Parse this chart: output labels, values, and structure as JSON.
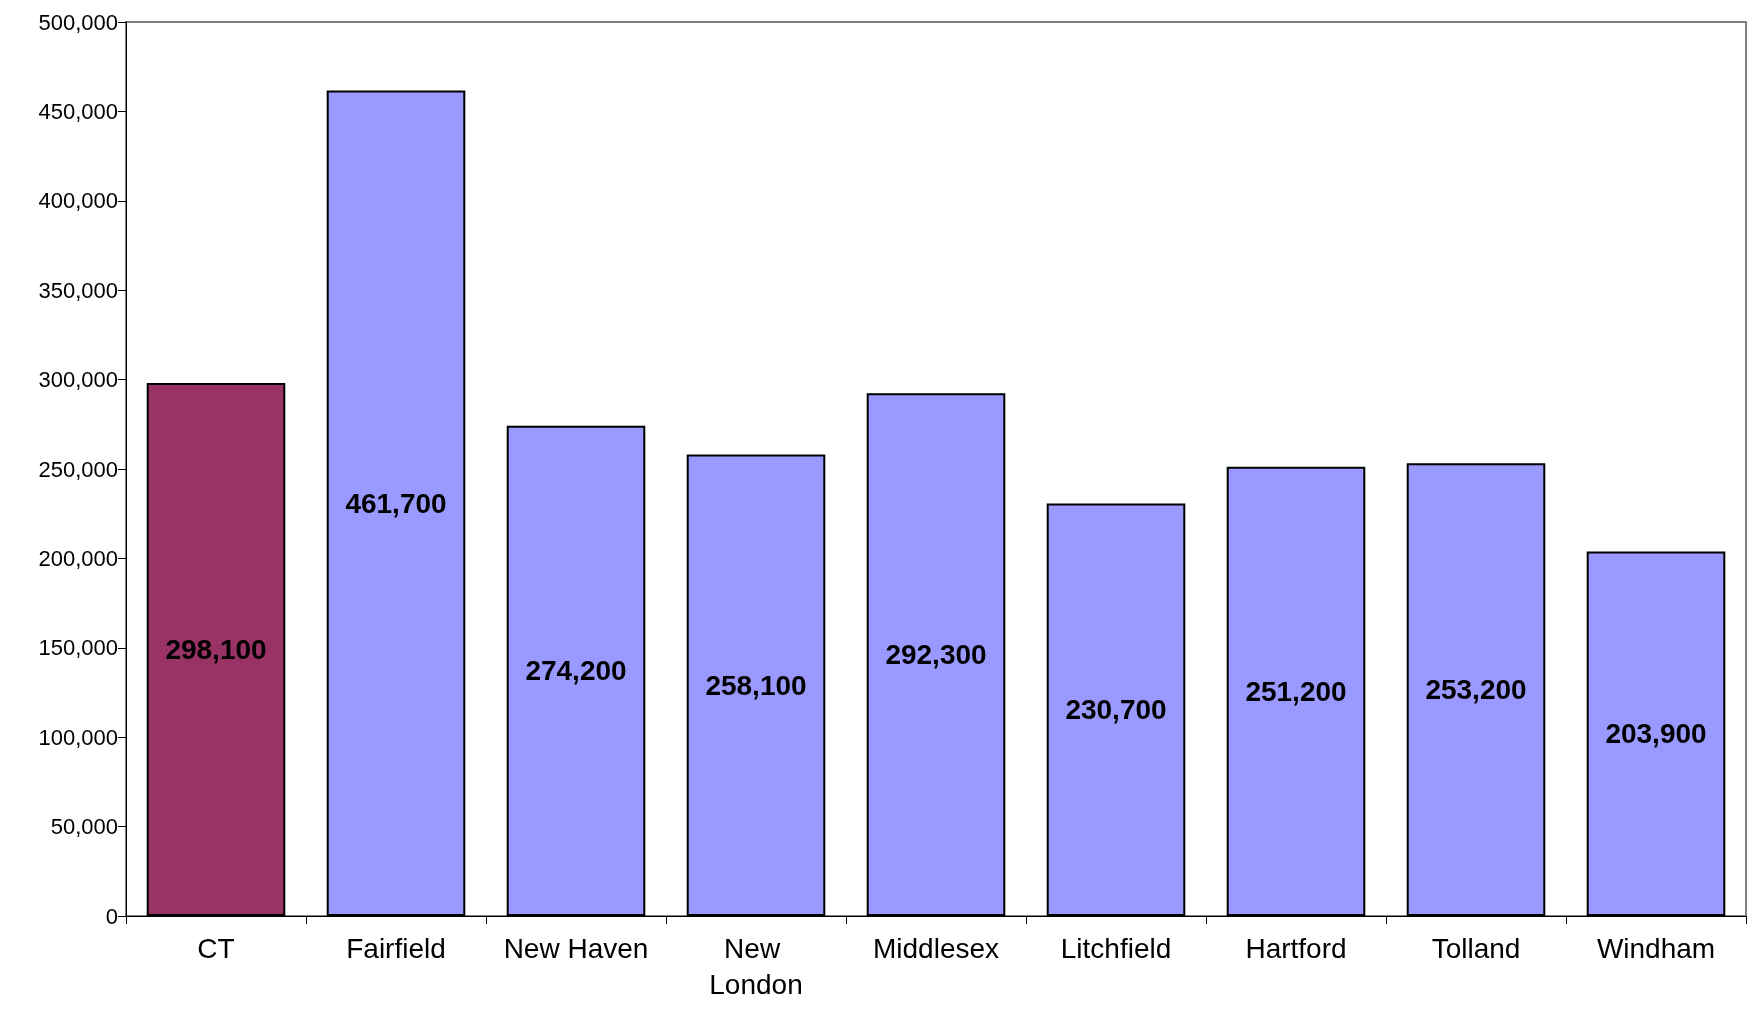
{
  "chart_data": {
    "type": "bar",
    "categories": [
      "CT",
      "Fairfield",
      "New Haven",
      "New London",
      "Middlesex",
      "Litchfield",
      "Hartford",
      "Tolland",
      "Windham"
    ],
    "values": [
      298100,
      461700,
      274200,
      258100,
      292300,
      230700,
      251200,
      253200,
      203900
    ],
    "value_labels": [
      "298,100",
      "461,700",
      "274,200",
      "258,100",
      "292,300",
      "230,700",
      "251,200",
      "253,200",
      "203,900"
    ],
    "colors": [
      "#993366",
      "#9999ff",
      "#9999ff",
      "#9999ff",
      "#9999ff",
      "#9999ff",
      "#9999ff",
      "#9999ff",
      "#9999ff"
    ],
    "ylim": [
      0,
      500000
    ],
    "yticks": [
      0,
      {
        "value": 50000,
        "label": "50,000"
      },
      {
        "value": 100000,
        "label": "100,000"
      },
      {
        "value": 150000,
        "label": "150,000"
      },
      {
        "value": 200000,
        "label": "200,000"
      },
      {
        "value": 250000,
        "label": "250,000"
      },
      {
        "value": 300000,
        "label": "300,000"
      },
      {
        "value": 350000,
        "label": "350,000"
      },
      {
        "value": 400000,
        "label": "400,000"
      },
      {
        "value": 450000,
        "label": "450,000"
      },
      {
        "value": 500000,
        "label": "500,000"
      }
    ]
  }
}
